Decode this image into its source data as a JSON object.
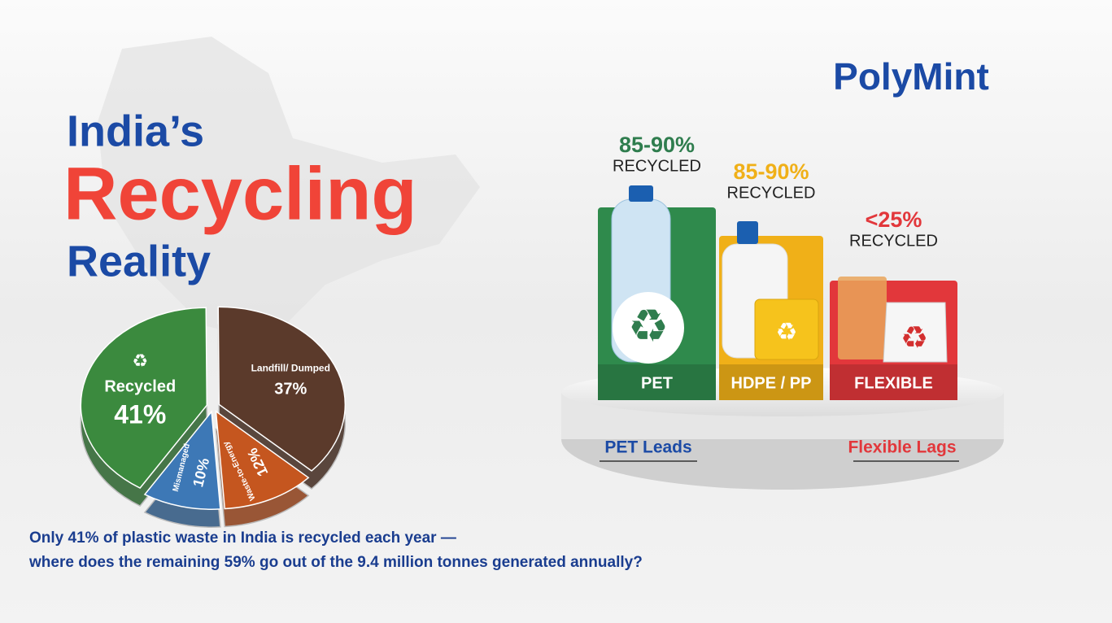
{
  "brand": "PolyMint",
  "title": {
    "line1": "India’s",
    "line2": "Recycling",
    "line3": "Reality"
  },
  "chart_data": {
    "type": "pie",
    "categories": [
      "Recycled",
      "Landfill/ Dumped",
      "Waste-to-Energy",
      "Mismanaged"
    ],
    "values": [
      41,
      37,
      12,
      10
    ],
    "value_labels": [
      "41%",
      "37%",
      "12%",
      "10%"
    ],
    "colors": [
      "#3b8a3e",
      "#5b3a2b",
      "#c5561f",
      "#3d78b6"
    ]
  },
  "podium": {
    "items": [
      {
        "rate": "85-90%",
        "caption": "RECYCLED",
        "label": "PET",
        "color": "#2f8a4c"
      },
      {
        "rate": "85-90%",
        "caption": "RECYCLED",
        "label": "HDPE / PP",
        "color": "#f0b018"
      },
      {
        "rate": "<25%",
        "caption": "RECYCLED",
        "label": "FLEXIBLE",
        "color": "#e2373b"
      }
    ],
    "notes": [
      "PET Leads",
      "Flexible Lags"
    ]
  },
  "footer": [
    "Only 41% of plastic waste in India is recycled each year —",
    "where does the remaining 59% go out of the 9.4 million tonnes generated annually?"
  ]
}
